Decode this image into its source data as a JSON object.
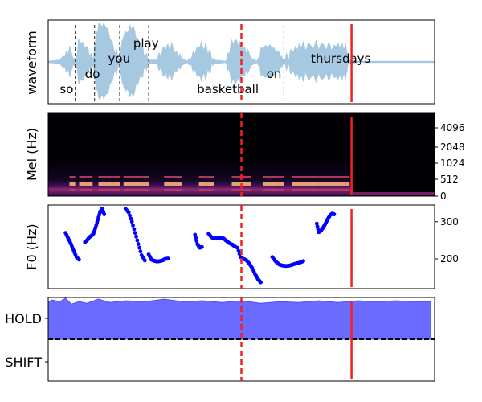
{
  "colors": {
    "waveform": "#a6c8e0",
    "f0_points": "#0000ff",
    "hold_fill": "#6b6bff",
    "hold_line": "#4a4aff",
    "marker": "#ee2222",
    "spec_bg": "#000004"
  },
  "chart_data": [
    {
      "type": "area",
      "panel": "waveform",
      "ylabel": "waveform",
      "x_range": [
        0,
        10
      ],
      "words": [
        {
          "text": "so",
          "x": 0.3,
          "row": "bottom"
        },
        {
          "text": "do",
          "x": 0.95,
          "row": "mid"
        },
        {
          "text": "you",
          "x": 1.55,
          "row": "upper"
        },
        {
          "text": "play",
          "x": 2.2,
          "row": "top"
        },
        {
          "text": "basketball",
          "x": 3.85,
          "row": "bottom"
        },
        {
          "text": "on",
          "x": 5.65,
          "row": "mid"
        },
        {
          "text": "thursdays",
          "x": 6.8,
          "row": "upper"
        }
      ],
      "word_boundaries": [
        0.7,
        1.2,
        1.85,
        2.6,
        6.1
      ],
      "envelope": [
        [
          0.0,
          0.02
        ],
        [
          0.3,
          0.05
        ],
        [
          0.55,
          0.35
        ],
        [
          0.7,
          0.05
        ],
        [
          0.8,
          0.55
        ],
        [
          1.0,
          0.35
        ],
        [
          1.15,
          0.1
        ],
        [
          1.3,
          0.95
        ],
        [
          1.5,
          0.9
        ],
        [
          1.7,
          0.35
        ],
        [
          1.85,
          0.05
        ],
        [
          1.95,
          0.75
        ],
        [
          2.2,
          0.85
        ],
        [
          2.45,
          0.3
        ],
        [
          2.6,
          0.05
        ],
        [
          2.8,
          0.05
        ],
        [
          3.0,
          0.35
        ],
        [
          3.2,
          0.4
        ],
        [
          3.45,
          0.1
        ],
        [
          3.6,
          0.02
        ],
        [
          3.9,
          0.45
        ],
        [
          4.1,
          0.35
        ],
        [
          4.3,
          0.05
        ],
        [
          4.6,
          0.02
        ],
        [
          4.75,
          0.5
        ],
        [
          5.0,
          0.45
        ],
        [
          5.25,
          0.1
        ],
        [
          5.4,
          0.02
        ],
        [
          5.55,
          0.38
        ],
        [
          5.75,
          0.4
        ],
        [
          5.95,
          0.25
        ],
        [
          6.1,
          0.03
        ],
        [
          6.3,
          0.25
        ],
        [
          6.6,
          0.4
        ],
        [
          7.0,
          0.42
        ],
        [
          7.4,
          0.38
        ],
        [
          7.7,
          0.35
        ],
        [
          7.8,
          0.05
        ],
        [
          8.0,
          0.02
        ],
        [
          9.0,
          0.02
        ],
        [
          10.0,
          0.02
        ]
      ]
    },
    {
      "type": "heatmap",
      "panel": "mel",
      "ylabel": "Mel (Hz)",
      "y_ticks": [
        "4096",
        "2048",
        "1024",
        "512",
        "0"
      ],
      "energy_until_x": 7.9
    },
    {
      "type": "scatter",
      "panel": "f0",
      "ylabel": "F0 (Hz)",
      "ylim": [
        120,
        345
      ],
      "y_ticks": [
        200,
        300
      ],
      "segments": [
        {
          "x0": 0.45,
          "x1": 0.8,
          "y": [
            270,
            255,
            240,
            222,
            205,
            198
          ]
        },
        {
          "x0": 0.95,
          "x1": 1.45,
          "y": [
            245,
            250,
            258,
            262,
            268,
            285,
            305,
            325,
            335,
            320
          ]
        },
        {
          "x0": 2.0,
          "x1": 2.5,
          "y": [
            335,
            325,
            300,
            270,
            240,
            210,
            196
          ]
        },
        {
          "x0": 2.6,
          "x1": 3.1,
          "y": [
            212,
            198,
            195,
            193,
            194,
            196,
            200,
            201
          ]
        },
        {
          "x0": 3.8,
          "x1": 3.98,
          "y": [
            265,
            240,
            230,
            232
          ]
        },
        {
          "x0": 4.15,
          "x1": 4.85,
          "y": [
            268,
            258,
            255,
            256,
            257,
            255,
            248,
            242,
            238,
            232
          ]
        },
        {
          "x0": 4.9,
          "x1": 5.5,
          "y": [
            230,
            205,
            200,
            197,
            188,
            176,
            160,
            146,
            137
          ]
        },
        {
          "x0": 5.8,
          "x1": 6.6,
          "y": [
            205,
            193,
            185,
            182,
            181,
            182,
            185,
            188,
            190,
            194
          ]
        },
        {
          "x0": 6.95,
          "x1": 7.4,
          "y": [
            295,
            272,
            275,
            282,
            290,
            300,
            310,
            318,
            322,
            320
          ]
        }
      ]
    },
    {
      "type": "area",
      "panel": "turn",
      "y_ticks": [
        "HOLD",
        "SHIFT"
      ],
      "ylim": [
        0,
        1
      ],
      "threshold": 0.5,
      "hold_prob": [
        [
          0.0,
          0.94
        ],
        [
          0.1,
          0.97
        ],
        [
          0.3,
          0.95
        ],
        [
          0.45,
          0.99
        ],
        [
          0.6,
          0.92
        ],
        [
          0.8,
          0.95
        ],
        [
          1.0,
          0.93
        ],
        [
          1.3,
          0.98
        ],
        [
          1.6,
          0.94
        ],
        [
          2.0,
          0.96
        ],
        [
          2.5,
          0.95
        ],
        [
          3.0,
          0.98
        ],
        [
          3.5,
          0.95
        ],
        [
          4.0,
          0.96
        ],
        [
          4.5,
          0.94
        ],
        [
          5.0,
          0.96
        ],
        [
          5.5,
          0.93
        ],
        [
          6.0,
          0.95
        ],
        [
          6.5,
          0.94
        ],
        [
          7.0,
          0.96
        ],
        [
          7.5,
          0.94
        ],
        [
          8.0,
          0.96
        ],
        [
          8.5,
          0.95
        ],
        [
          9.0,
          0.96
        ],
        [
          9.5,
          0.95
        ],
        [
          9.9,
          0.95
        ]
      ]
    }
  ],
  "markers": {
    "dashed_x": 5.0,
    "solid_x": 7.85
  }
}
